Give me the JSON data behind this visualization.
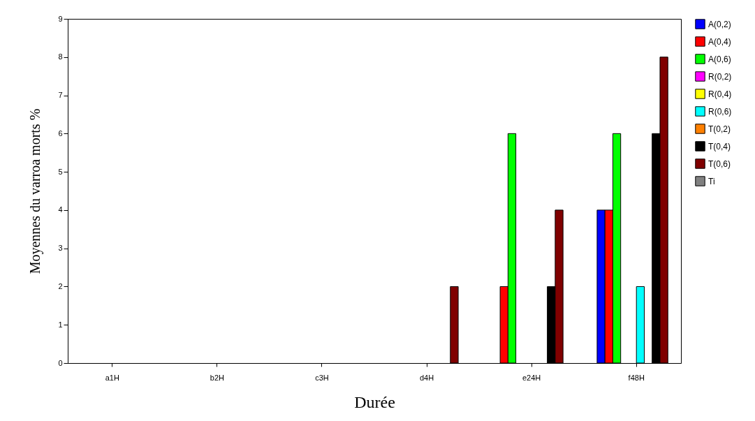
{
  "chart_data": {
    "type": "bar",
    "xlabel": "Durée",
    "ylabel": "Moyennes du varroa morts %",
    "categories": [
      "a1H",
      "b2H",
      "c3H",
      "d4H",
      "e24H",
      "f48H"
    ],
    "ylim": [
      0,
      9
    ],
    "yticks": [
      0,
      1,
      2,
      3,
      4,
      5,
      6,
      7,
      8,
      9
    ],
    "grid": false,
    "legend": "right",
    "series": [
      {
        "name": "A(0,2)",
        "color": "#0000ff",
        "values": [
          0,
          0,
          0,
          0,
          0,
          4
        ]
      },
      {
        "name": "A(0,4)",
        "color": "#ff0000",
        "values": [
          0,
          0,
          0,
          0,
          2,
          4
        ]
      },
      {
        "name": "A(0,6)",
        "color": "#00ff00",
        "values": [
          0,
          0,
          0,
          0,
          6,
          6
        ]
      },
      {
        "name": "R(0,2)",
        "color": "#ff00ff",
        "values": [
          0,
          0,
          0,
          0,
          0,
          0
        ]
      },
      {
        "name": "R(0,4)",
        "color": "#ffff00",
        "values": [
          0,
          0,
          0,
          0,
          0,
          0
        ]
      },
      {
        "name": "R(0,6)",
        "color": "#00ffff",
        "values": [
          0,
          0,
          0,
          0,
          0,
          2
        ]
      },
      {
        "name": "T(0,2)",
        "color": "#ff8000",
        "values": [
          0,
          0,
          0,
          0,
          0,
          0
        ]
      },
      {
        "name": "T(0,4)",
        "color": "#000000",
        "values": [
          0,
          0,
          0,
          0,
          2,
          6
        ]
      },
      {
        "name": "T(0,6)",
        "color": "#800000",
        "values": [
          0,
          0,
          0,
          2,
          4,
          8
        ]
      },
      {
        "name": "Ti",
        "color": "#808080",
        "values": [
          0,
          0,
          0,
          0,
          0,
          0
        ]
      }
    ]
  }
}
